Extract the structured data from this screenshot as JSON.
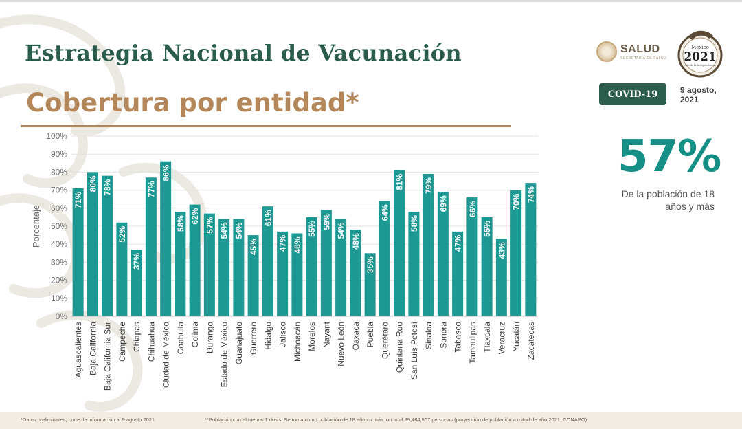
{
  "header": {
    "title": "Estrategia Nacional de Vacunación",
    "subtitle": "Cobertura por entidad*"
  },
  "brand": {
    "salud_name": "SALUD",
    "salud_sub": "SECRETARÍA DE SALUD",
    "emblem_line1": "México",
    "emblem_year": "2021",
    "emblem_line2": "Año de la Independencia",
    "badge": "COVID-19",
    "date": "9 agosto, 2021"
  },
  "summary": {
    "value": "57%",
    "caption": "De la población de 18 años y más"
  },
  "footnotes": {
    "left": "*Datos preliminares, corte de información al 9 agosto  2021",
    "right": "**Población con al menos 1 dosis. Se toma como población de 18 años o más, un total 89,484,507 personas (proyección de población a mitad de año 2021, CONAPO)."
  },
  "colors": {
    "bar": "#1e9893",
    "title": "#2a5c4c",
    "subtitle": "#b3875a",
    "accent": "#168f87",
    "badge": "#2d5e4d"
  },
  "chart_data": {
    "type": "bar",
    "ylabel": "Porcentaje",
    "xlabel": "",
    "ylim": [
      0,
      100
    ],
    "yticks": [
      "0%",
      "10%",
      "20%",
      "30%",
      "40%",
      "50%",
      "60%",
      "70%",
      "80%",
      "90%",
      "100%"
    ],
    "grid": true,
    "categories": [
      "Aguascalientes",
      "Baja California",
      "Baja California Sur",
      "Campeche",
      "Chiapas",
      "Chihuahua",
      "Ciudad de México",
      "Coahuila",
      "Colima",
      "Durango",
      "Estado de México",
      "Guanajuato",
      "Guerrero",
      "Hidalgo",
      "Jalisco",
      "Michoacán",
      "Morelos",
      "Nayarit",
      "Nuevo León",
      "Oaxaca",
      "Puebla",
      "Querétaro",
      "Quintana Roo",
      "San Luis Potosí",
      "Sinaloa",
      "Sonora",
      "Tabasco",
      "Tamaulipas",
      "Tlaxcala",
      "Veracruz",
      "Yucatán",
      "Zacatecas"
    ],
    "values": [
      71,
      80,
      78,
      52,
      37,
      77,
      86,
      58,
      62,
      57,
      54,
      54,
      45,
      61,
      47,
      46,
      55,
      59,
      54,
      48,
      35,
      64,
      81,
      58,
      79,
      69,
      47,
      66,
      55,
      43,
      70,
      74
    ],
    "labels": [
      "71%",
      "80%",
      "78%",
      "52%",
      "37%",
      "77%",
      "86%",
      "58%",
      "62%",
      "57%",
      "54%",
      "54%",
      "45%",
      "61%",
      "47%",
      "46%",
      "55%",
      "59%",
      "54%",
      "48%",
      "35%",
      "64%",
      "81%",
      "58%",
      "79%",
      "69%",
      "47%",
      "66%",
      "55%",
      "43%",
      "70%",
      "74%"
    ]
  }
}
